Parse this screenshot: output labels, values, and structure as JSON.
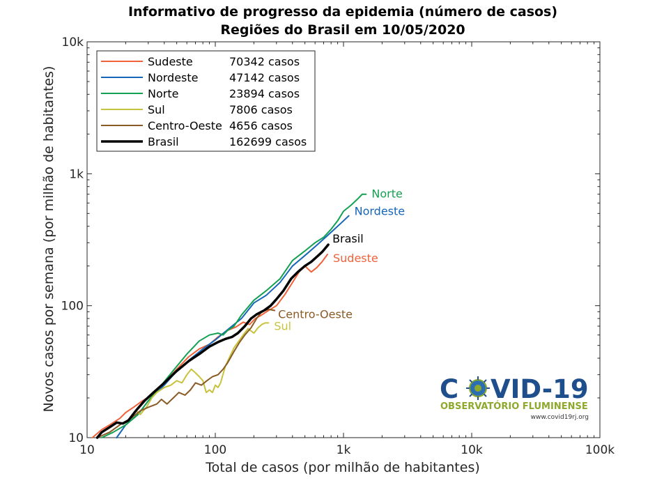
{
  "chart_data": {
    "type": "line",
    "title": "Informativo de progresso da epidemia (número de casos)",
    "subtitle": "Regiões do Brasil em 10/05/2020",
    "xlabel": "Total de casos (por milhão de habitantes)",
    "ylabel": "Novos casos por semana (por milhão de habitantes)",
    "xscale": "log",
    "yscale": "log",
    "xlim": [
      10,
      100000
    ],
    "ylim": [
      10,
      10000
    ],
    "xticks": [
      {
        "value": 10,
        "label": "10"
      },
      {
        "value": 100,
        "label": "100"
      },
      {
        "value": 1000,
        "label": "1k"
      },
      {
        "value": 10000,
        "label": "10k"
      },
      {
        "value": 100000,
        "label": "100k"
      }
    ],
    "yticks": [
      {
        "value": 10,
        "label": "10"
      },
      {
        "value": 100,
        "label": "100"
      },
      {
        "value": 1000,
        "label": "1k"
      },
      {
        "value": 10000,
        "label": "10k"
      }
    ],
    "grid": false,
    "legend_position": "top-left",
    "series": [
      {
        "name": "Sudeste",
        "legend": "Sudeste",
        "cases": "70342 casos",
        "end_label": "Sudeste",
        "color": "#f0613a",
        "bold": false,
        "x": [
          11,
          13,
          15,
          18,
          20,
          23,
          27,
          32,
          40,
          50,
          62,
          75,
          90,
          105,
          125,
          145,
          165,
          185,
          205,
          225,
          260,
          300,
          350,
          400,
          450,
          500,
          560,
          620,
          680,
          750
        ],
        "y": [
          10,
          11.5,
          12.5,
          14,
          15.5,
          17,
          19,
          21,
          26,
          33,
          41,
          47,
          51,
          58,
          65,
          69,
          75,
          72,
          80,
          84,
          92,
          100,
          122,
          150,
          180,
          200,
          180,
          195,
          215,
          245
        ]
      },
      {
        "name": "Nordeste",
        "legend": "Nordeste",
        "cases": " 47142 casos",
        "end_label": "Nordeste",
        "color": "#1565b8",
        "bold": false,
        "x": [
          17,
          20,
          25,
          30,
          40,
          50,
          65,
          80,
          100,
          130,
          160,
          200,
          250,
          320,
          400,
          500,
          600,
          700,
          800,
          950,
          1100
        ],
        "y": [
          10,
          12.5,
          15,
          19,
          25,
          32,
          40,
          47,
          55,
          68,
          80,
          105,
          120,
          150,
          200,
          240,
          280,
          320,
          360,
          420,
          480
        ]
      },
      {
        "name": "Norte",
        "legend": "Norte",
        "cases": "23894 casos",
        "end_label": "Norte",
        "color": "#13a050",
        "bold": false,
        "x": [
          13,
          16,
          20,
          25,
          30,
          38,
          48,
          60,
          75,
          90,
          105,
          115,
          125,
          140,
          160,
          200,
          250,
          320,
          400,
          500,
          600,
          700,
          800,
          900,
          1000,
          1150,
          1300,
          1400,
          1500
        ],
        "y": [
          10,
          11,
          12.5,
          15,
          19,
          25,
          33,
          43,
          54,
          60,
          62,
          60,
          65,
          70,
          85,
          110,
          130,
          160,
          220,
          260,
          300,
          330,
          380,
          440,
          520,
          580,
          650,
          700,
          700
        ]
      },
      {
        "name": "Sul",
        "legend": "Sul",
        "cases": "7806 casos",
        "end_label": "Sul",
        "color": "#c7c33d",
        "bold": false,
        "x": [
          24,
          26,
          29,
          32,
          35,
          40,
          45,
          50,
          55,
          60,
          65,
          70,
          75,
          80,
          85,
          90,
          95,
          100,
          105,
          110,
          120,
          140,
          165,
          180,
          200,
          215,
          230,
          245,
          260
        ],
        "y": [
          16,
          15,
          17,
          20,
          22,
          24,
          25,
          27,
          26,
          30,
          33,
          31,
          29,
          27,
          22,
          23,
          22,
          25,
          24,
          26,
          35,
          48,
          60,
          67,
          62,
          68,
          72,
          74,
          74
        ]
      },
      {
        "name": "Centro-Oeste",
        "legend": "Centro-Oeste",
        "cases": "4656 casos",
        "end_label": "Centro-Oeste",
        "color": "#8a5a25",
        "bold": false,
        "x": [
          12,
          15,
          18,
          22,
          26,
          30,
          35,
          38,
          42,
          47,
          52,
          58,
          64,
          70,
          78,
          86,
          95,
          105,
          115,
          125,
          140,
          155,
          170,
          190,
          210,
          230,
          260,
          290
        ],
        "y": [
          10,
          11,
          12.5,
          14,
          16,
          17,
          18,
          19.5,
          18,
          20,
          22,
          21,
          23,
          26,
          25,
          27,
          29,
          30,
          33,
          37,
          45,
          53,
          60,
          68,
          80,
          90,
          94,
          92
        ]
      },
      {
        "name": "Brasil",
        "legend": "Brasil",
        "cases": "162699 casos",
        "end_label": "Brasil",
        "color": "#000000",
        "bold": true,
        "x": [
          12,
          13,
          15,
          17,
          19,
          21,
          24,
          28,
          33,
          40,
          50,
          62,
          75,
          90,
          105,
          120,
          135,
          150,
          170,
          190,
          210,
          240,
          270,
          300,
          340,
          390,
          440,
          500,
          560,
          620,
          680,
          760
        ],
        "y": [
          10,
          11,
          12,
          13,
          12.8,
          13.5,
          16,
          19,
          22,
          26,
          32,
          38,
          43,
          49,
          53,
          56,
          58,
          62,
          70,
          80,
          86,
          92,
          100,
          112,
          130,
          160,
          180,
          200,
          215,
          235,
          255,
          290
        ]
      }
    ]
  },
  "logo": {
    "title_part1": "C",
    "title_part2": "VID-19",
    "subtitle": "OBSERVATÓRIO FLUMINENSE",
    "url": "www.covid19rj.org",
    "primary_color": "#1e4f8c",
    "secondary_color": "#8ea82c"
  }
}
